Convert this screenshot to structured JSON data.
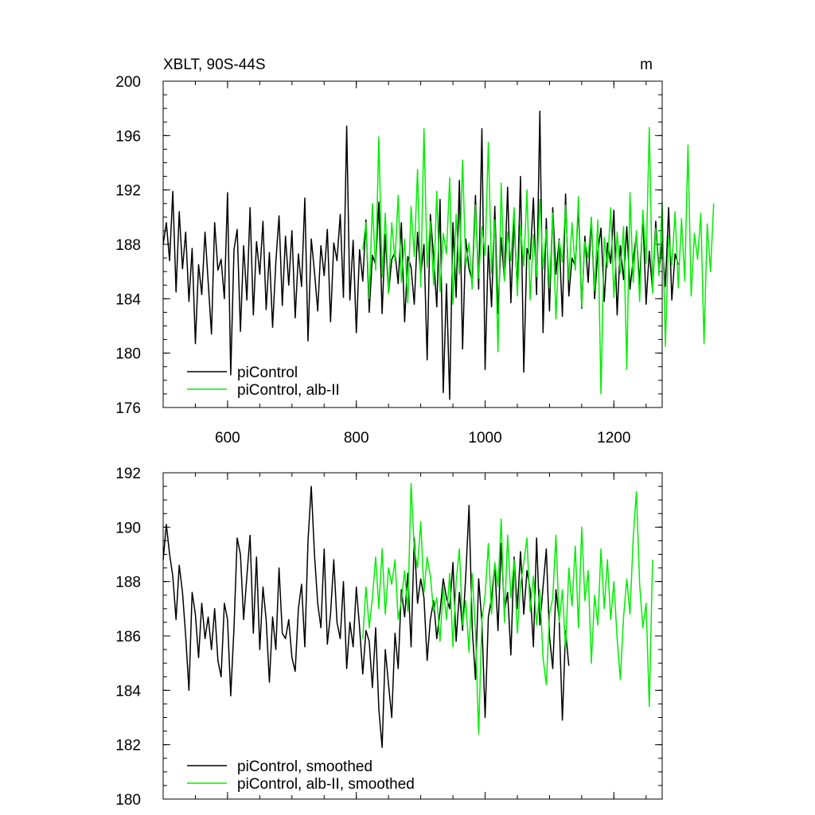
{
  "chart_data": [
    {
      "type": "line",
      "title": "XBLT, 90S-44S",
      "units": "m",
      "xlim": [
        500,
        1275
      ],
      "ylim": [
        176,
        200
      ],
      "xticks": [
        600,
        800,
        1000,
        1200
      ],
      "yticks": [
        176,
        180,
        184,
        188,
        192,
        196,
        200
      ],
      "xticklabels": [
        "600",
        "800",
        "1000",
        "1200"
      ],
      "yticklabels": [
        "176",
        "180",
        "184",
        "188",
        "192",
        "196",
        "200"
      ],
      "legend_position": "bottom-left",
      "series": [
        {
          "name": "piControl",
          "color": "#000000",
          "x_start": 500,
          "x_step": 5,
          "values": [
            188.0,
            189.6,
            186.8,
            191.9,
            184.5,
            190.4,
            186.2,
            188.9,
            183.8,
            187.7,
            180.7,
            186.5,
            184.3,
            188.9,
            185.2,
            181.4,
            189.6,
            186.1,
            186.9,
            184.0,
            191.8,
            178.4,
            187.6,
            189.1,
            181.6,
            187.9,
            183.9,
            190.7,
            182.8,
            188.2,
            185.8,
            189.7,
            183.2,
            187.4,
            181.9,
            186.7,
            190.1,
            183.5,
            188.6,
            185.0,
            189.0,
            182.6,
            187.3,
            184.9,
            191.4,
            180.9,
            188.4,
            186.0,
            183.1,
            187.9,
            185.7,
            189.1,
            182.3,
            188.1,
            186.8,
            190.2,
            184.1,
            196.7,
            183.9,
            188.3,
            181.5,
            187.6,
            185.3,
            189.8,
            183.0,
            187.2,
            186.5,
            191.1,
            182.9,
            188.7,
            184.4,
            186.9,
            187.4,
            185.1,
            189.6,
            182.3,
            187.1,
            186.3,
            183.6,
            188.9,
            185.7,
            188.0,
            179.5,
            190.2,
            187.1,
            183.4,
            191.3,
            177.1,
            185.1,
            176.6,
            189.6,
            184.1,
            192.7,
            180.3,
            188.4,
            186.2,
            185.3,
            191.6,
            184.7,
            196.5,
            178.8,
            187.9,
            183.4,
            190.8,
            182.9,
            188.5,
            185.4,
            192.2,
            183.7,
            189.8,
            184.6,
            193.0,
            178.6,
            187.7,
            186.9,
            191.4,
            184.3,
            197.8,
            181.5,
            189.9,
            183.1,
            190.7,
            185.8,
            188.4,
            182.7,
            191.7,
            184.2,
            187.0,
            186.4,
            190.8,
            183.3,
            188.6,
            185.2,
            189.9,
            184.0,
            187.4,
            189.2,
            183.8,
            188.1,
            186.6,
            190.5,
            182.8,
            187.9,
            185.4,
            189.3,
            184.7,
            186.9,
            188.7,
            185.1,
            190.1,
            183.6,
            187.5,
            184.6,
            189.7,
            186.0,
            188.2,
            184.9,
            190.7,
            183.9,
            187.3,
            186.5
          ]
        },
        {
          "name": "piControl, alb-II",
          "color": "#00ee00",
          "x_start": 810,
          "x_step": 5,
          "values": [
            187.6,
            189.6,
            184.0,
            191.0,
            186.1,
            195.9,
            185.6,
            190.3,
            184.4,
            189.6,
            186.8,
            191.6,
            185.2,
            188.4,
            183.7,
            190.8,
            187.1,
            193.5,
            184.9,
            196.5,
            186.3,
            189.7,
            185.0,
            191.9,
            184.5,
            188.8,
            187.3,
            192.9,
            183.6,
            190.2,
            185.8,
            194.2,
            186.4,
            188.1,
            184.7,
            190.9,
            185.5,
            189.3,
            187.2,
            195.5,
            185.9,
            189.8,
            180.1,
            192.5,
            185.3,
            188.9,
            186.8,
            190.7,
            184.2,
            189.4,
            186.4,
            192.0,
            183.9,
            188.7,
            185.6,
            191.3,
            186.2,
            189.1,
            184.8,
            190.3,
            182.5,
            188.3,
            186.7,
            190.9,
            185.4,
            189.6,
            186.1,
            191.5,
            183.4,
            188.2,
            187.0,
            190.0,
            184.6,
            189.8,
            177.0,
            188.5,
            186.3,
            190.7,
            184.1,
            188.9,
            185.9,
            189.3,
            178.8,
            191.8,
            185.2,
            189.0,
            183.8,
            190.5,
            186.6,
            196.6,
            184.4,
            189.2,
            185.7,
            191.1,
            180.5,
            188.6,
            186.5,
            190.4,
            184.8,
            189.9,
            185.3,
            195.3,
            184.2,
            188.8,
            186.9,
            190.3,
            180.7,
            189.5,
            186.0,
            191.0
          ]
        }
      ]
    },
    {
      "type": "line",
      "title": "",
      "xlim": [
        500,
        1275
      ],
      "ylim": [
        180,
        192
      ],
      "xticks": [
        600,
        800,
        1000,
        1200
      ],
      "yticks": [
        180,
        182,
        184,
        186,
        188,
        190,
        192
      ],
      "yticklabels": [
        "180",
        "182",
        "184",
        "186",
        "188",
        "190",
        "192"
      ],
      "legend_position": "bottom-left",
      "series": [
        {
          "name": "piControl, smoothed",
          "color": "#000000",
          "x_start": 500,
          "x_step": 5,
          "values": [
            188.8,
            190.1,
            189.0,
            188.2,
            186.6,
            188.6,
            187.6,
            186.0,
            184.0,
            187.6,
            186.8,
            185.2,
            187.2,
            185.9,
            186.7,
            185.5,
            187.0,
            185.1,
            184.5,
            187.2,
            186.6,
            183.8,
            186.3,
            189.6,
            189.0,
            186.6,
            188.2,
            189.7,
            186.1,
            188.9,
            185.5,
            187.8,
            186.6,
            184.3,
            186.7,
            185.5,
            188.5,
            186.1,
            185.9,
            186.6,
            185.2,
            184.7,
            187.0,
            187.9,
            185.6,
            189.5,
            191.5,
            189.0,
            187.2,
            186.3,
            189.2,
            185.7,
            186.8,
            188.8,
            186.5,
            185.9,
            188.0,
            184.8,
            186.5,
            185.6,
            187.8,
            186.3,
            184.6,
            186.2,
            185.8,
            184.1,
            186.3,
            183.3,
            181.9,
            185.5,
            184.2,
            183.0,
            186.1,
            184.8,
            187.7,
            186.7,
            188.3,
            185.6,
            189.6,
            187.2,
            188.1,
            187.4,
            185.1,
            186.6,
            187.3,
            185.9,
            186.9,
            188.1,
            187.4,
            187.0,
            188.7,
            185.8,
            187.6,
            186.2,
            188.2,
            190.8,
            186.3,
            184.4,
            188.1,
            186.5,
            183.0,
            186.7,
            187.4,
            188.6,
            186.2,
            189.4,
            186.9,
            187.6,
            185.3,
            188.9,
            187.0,
            189.1,
            186.8,
            188.4,
            187.7,
            185.6,
            189.6,
            186.4,
            187.8,
            189.2,
            186.0,
            184.8,
            187.7,
            186.6,
            182.9,
            186.2,
            184.9
          ]
        },
        {
          "name": "piControl, alb-II, smoothed",
          "color": "#00ee00",
          "x_start": 810,
          "x_step": 5,
          "values": [
            185.9,
            187.8,
            186.3,
            187.4,
            188.9,
            187.0,
            189.2,
            186.8,
            188.5,
            187.9,
            188.8,
            186.6,
            187.3,
            188.4,
            186.9,
            191.6,
            189.2,
            188.5,
            190.2,
            187.6,
            188.9,
            188.2,
            186.9,
            187.4,
            185.8,
            187.8,
            186.6,
            188.3,
            185.6,
            188.0,
            189.2,
            186.4,
            187.3,
            185.4,
            188.3,
            186.2,
            182.4,
            186.6,
            187.5,
            189.4,
            186.8,
            188.7,
            187.8,
            190.3,
            186.5,
            189.7,
            187.4,
            188.8,
            186.1,
            187.9,
            188.7,
            189.6,
            186.9,
            188.2,
            186.4,
            187.7,
            185.2,
            184.2,
            186.8,
            187.4,
            189.7,
            186.5,
            187.7,
            185.5,
            188.5,
            187.1,
            189.3,
            186.3,
            190.0,
            187.3,
            188.4,
            185.0,
            187.5,
            186.4,
            189.2,
            187.0,
            188.8,
            186.6,
            188.0,
            185.9,
            184.4,
            186.7,
            188.1,
            186.8,
            189.6,
            191.3,
            187.9,
            186.3,
            187.2,
            183.4,
            188.8
          ]
        }
      ]
    }
  ]
}
